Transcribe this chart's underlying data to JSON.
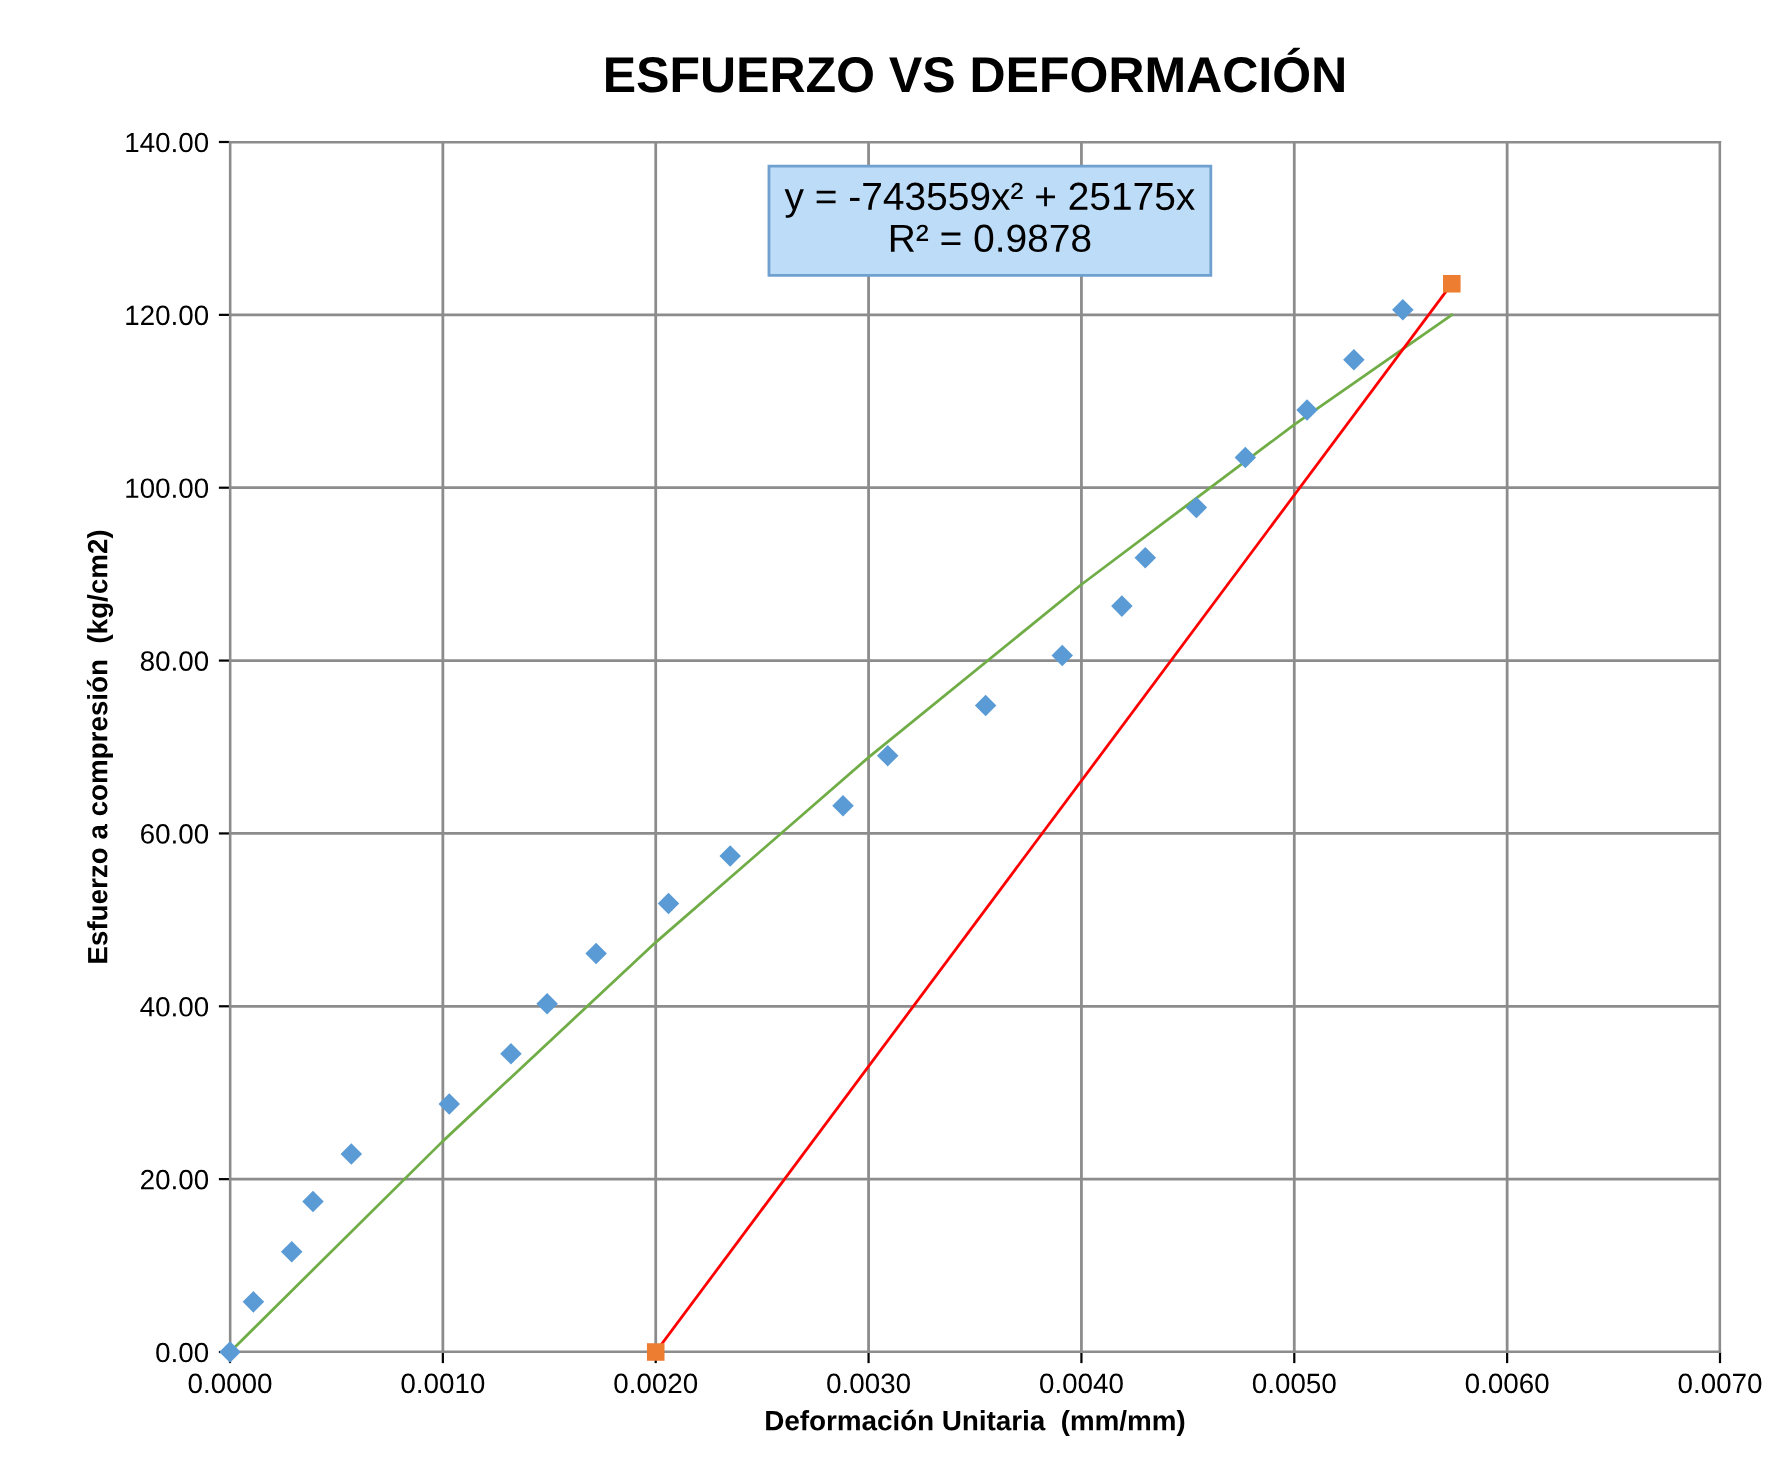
{
  "chart_data": {
    "type": "scatter",
    "title": "ESFUERZO VS DEFORMACIÓN",
    "xlabel": "Deformación Unitaria  (mm/mm)",
    "ylabel": "Esfuerzo a compresión  (kg/cm2)",
    "annotations": [
      "y = -743559x² + 25175x\nR² = 0.9878"
    ],
    "series": [
      {
        "type": "line",
        "color": "#70ad47",
        "marker": "none",
        "x": [
          0,
          0.001,
          0.002,
          0.003,
          0.004,
          0.005,
          0.00574
        ],
        "values": [
          0,
          24.4,
          47.4,
          68.8,
          88.8,
          107.3,
          120.0
        ]
      },
      {
        "type": "line",
        "color": "#ff0000",
        "marker": "none",
        "x": [
          0.002,
          0.00574
        ],
        "values": [
          0,
          123.6
        ]
      },
      {
        "color": "#5b9bd5",
        "marker": "diamond",
        "x": [
          0,
          0.00011,
          0.00029,
          0.00039,
          0.00057,
          0.00103,
          0.00132,
          0.00149,
          0.00172,
          0.00206,
          0.00235,
          0.00288,
          0.00309,
          0.00355,
          0.00391,
          0.00419,
          0.0043,
          0.00454,
          0.00477,
          0.00506,
          0.00528,
          0.00551
        ],
        "values": [
          0,
          5.8,
          11.6,
          17.4,
          22.9,
          28.7,
          34.5,
          40.3,
          46.1,
          51.9,
          57.4,
          63.2,
          69.0,
          74.8,
          80.6,
          86.3,
          91.9,
          97.7,
          103.5,
          109.0,
          114.8,
          120.6
        ]
      },
      {
        "type": "scatter",
        "color": "#ed7d31",
        "marker": "square",
        "x": [
          0.002,
          0.00574
        ],
        "values": [
          0,
          123.6
        ]
      }
    ],
    "xlim": [
      0,
      0.007
    ],
    "ylim": [
      0,
      140
    ],
    "xticks": [
      {
        "value": 0,
        "label": "0.0000"
      },
      {
        "value": 0.001,
        "label": "0.0010"
      },
      {
        "value": 0.002,
        "label": "0.0020"
      },
      {
        "value": 0.003,
        "label": "0.0030"
      },
      {
        "value": 0.004,
        "label": "0.0040"
      },
      {
        "value": 0.005,
        "label": "0.0050"
      },
      {
        "value": 0.006,
        "label": "0.0060"
      },
      {
        "value": 0.007,
        "label": "0.0070"
      }
    ],
    "yticks": [
      {
        "value": 0,
        "label": "0.00"
      },
      {
        "value": 20,
        "label": "20.00"
      },
      {
        "value": 40,
        "label": "40.00"
      },
      {
        "value": 60,
        "label": "60.00"
      },
      {
        "value": 80,
        "label": "80.00"
      },
      {
        "value": 100,
        "label": "100.00"
      },
      {
        "value": 120,
        "label": "120.00"
      },
      {
        "value": 140,
        "label": "140.00"
      }
    ],
    "grid": true
  }
}
